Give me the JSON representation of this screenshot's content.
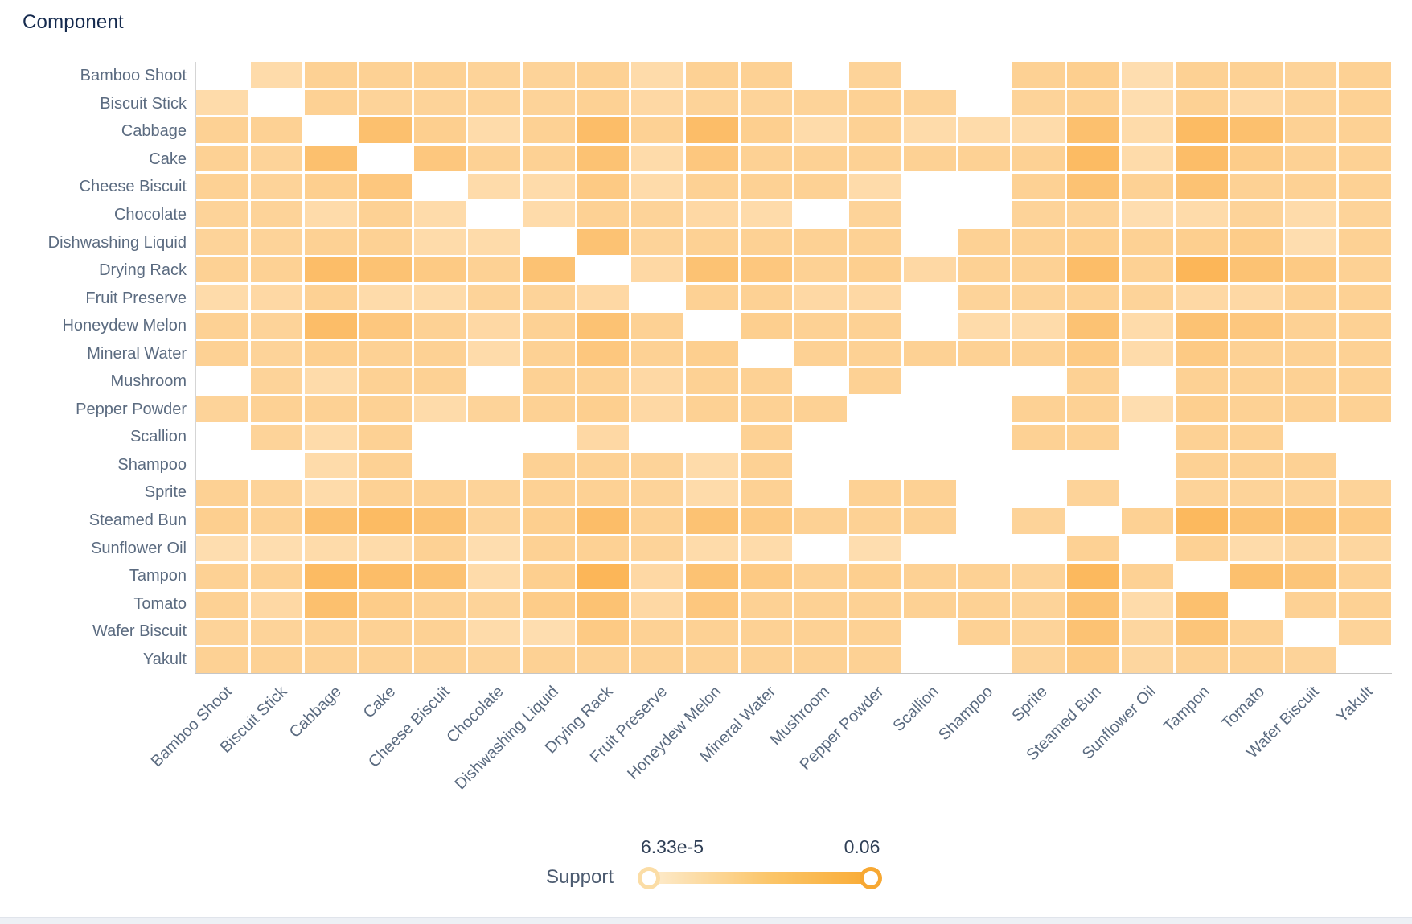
{
  "header": {
    "title": "Component"
  },
  "legend": {
    "label": "Support",
    "min_label": "6.33e-5",
    "max_label": "0.06"
  },
  "colors": {
    "title_text": "#152a4e",
    "axis_text": "#5b6b80",
    "scale_min_color": "#fff3e0",
    "scale_max_color": "#faaa3d",
    "slider_left_ring": "#fbdda6",
    "slider_right_ring": "#f7a833",
    "bottom_strip": "#edf0f5"
  },
  "chart_data": {
    "type": "heatmap",
    "title": "Component",
    "xlabel": "Component",
    "ylabel": "Component",
    "legend_label": "Support",
    "scale_min": 6.33e-05,
    "scale_max": 0.06,
    "grid_on": false,
    "legend_position": "bottom",
    "categories": [
      "Bamboo Shoot",
      "Biscuit Stick",
      "Cabbage",
      "Cake",
      "Cheese Biscuit",
      "Chocolate",
      "Dishwashing Liquid",
      "Drying Rack",
      "Fruit Preserve",
      "Honeydew Melon",
      "Mineral Water",
      "Mushroom",
      "Pepper Powder",
      "Scallion",
      "Shampoo",
      "Sprite",
      "Steamed Bun",
      "Sunflower Oil",
      "Tampon",
      "Tomato",
      "Wafer Biscuit",
      "Yakult"
    ],
    "matrix": [
      [
        null,
        0.02,
        0.028,
        0.028,
        0.028,
        0.026,
        0.026,
        0.028,
        0.02,
        0.028,
        0.028,
        null,
        0.026,
        null,
        null,
        0.028,
        0.03,
        0.018,
        0.028,
        0.028,
        0.026,
        0.028
      ],
      [
        0.02,
        null,
        0.028,
        0.026,
        0.026,
        0.026,
        0.026,
        0.028,
        0.022,
        0.026,
        0.026,
        0.026,
        0.028,
        0.026,
        null,
        0.026,
        0.028,
        0.018,
        0.028,
        0.022,
        0.026,
        0.028
      ],
      [
        0.028,
        0.028,
        null,
        0.042,
        0.03,
        0.02,
        0.028,
        0.044,
        0.028,
        0.044,
        0.03,
        0.02,
        0.028,
        0.02,
        0.02,
        0.02,
        0.042,
        0.02,
        0.046,
        0.042,
        0.028,
        0.028
      ],
      [
        0.028,
        0.026,
        0.042,
        null,
        0.036,
        0.028,
        0.028,
        0.04,
        0.02,
        0.036,
        0.028,
        0.028,
        0.028,
        0.028,
        0.028,
        0.028,
        0.046,
        0.02,
        0.044,
        0.032,
        0.028,
        0.028
      ],
      [
        0.028,
        0.026,
        0.03,
        0.036,
        null,
        0.02,
        0.02,
        0.034,
        0.02,
        0.028,
        0.028,
        0.028,
        0.02,
        null,
        null,
        0.028,
        0.04,
        0.028,
        0.04,
        0.028,
        0.028,
        0.028
      ],
      [
        0.026,
        0.026,
        0.02,
        0.028,
        0.02,
        null,
        0.02,
        0.028,
        0.026,
        0.022,
        0.02,
        null,
        0.026,
        null,
        null,
        0.026,
        0.026,
        0.018,
        0.02,
        0.026,
        0.02,
        0.026
      ],
      [
        0.026,
        0.026,
        0.028,
        0.028,
        0.02,
        0.02,
        null,
        0.04,
        0.026,
        0.028,
        0.028,
        0.028,
        0.028,
        null,
        0.028,
        0.028,
        0.03,
        0.028,
        0.03,
        0.032,
        0.018,
        0.028
      ],
      [
        0.028,
        0.028,
        0.044,
        0.04,
        0.034,
        0.028,
        0.04,
        null,
        0.022,
        0.04,
        0.036,
        0.028,
        0.03,
        0.022,
        0.028,
        0.028,
        0.044,
        0.028,
        0.05,
        0.04,
        0.034,
        0.028
      ],
      [
        0.02,
        0.022,
        0.028,
        0.02,
        0.02,
        0.026,
        0.026,
        0.022,
        null,
        0.028,
        0.028,
        0.022,
        0.022,
        null,
        0.026,
        0.026,
        0.028,
        0.026,
        0.022,
        0.022,
        0.028,
        0.028
      ],
      [
        0.028,
        0.026,
        0.044,
        0.036,
        0.028,
        0.022,
        0.028,
        0.04,
        0.028,
        null,
        0.03,
        0.028,
        0.028,
        null,
        0.02,
        0.02,
        0.04,
        0.02,
        0.04,
        0.036,
        0.028,
        0.028
      ],
      [
        0.028,
        0.026,
        0.03,
        0.028,
        0.028,
        0.02,
        0.028,
        0.036,
        0.028,
        0.03,
        null,
        0.028,
        0.028,
        0.028,
        0.028,
        0.028,
        0.034,
        0.02,
        0.034,
        0.028,
        0.028,
        0.028
      ],
      [
        null,
        0.026,
        0.02,
        0.028,
        0.028,
        null,
        0.028,
        0.028,
        0.022,
        0.028,
        0.028,
        null,
        0.028,
        null,
        null,
        null,
        0.028,
        null,
        0.028,
        0.028,
        0.028,
        0.028
      ],
      [
        0.026,
        0.028,
        0.028,
        0.028,
        0.02,
        0.026,
        0.028,
        0.03,
        0.022,
        0.028,
        0.028,
        0.028,
        null,
        null,
        null,
        0.028,
        0.028,
        0.018,
        0.03,
        0.028,
        0.028,
        0.028
      ],
      [
        null,
        0.026,
        0.02,
        0.028,
        null,
        null,
        null,
        0.022,
        null,
        null,
        0.028,
        null,
        null,
        null,
        null,
        0.028,
        0.028,
        null,
        0.028,
        0.028,
        null,
        null
      ],
      [
        null,
        null,
        0.02,
        0.028,
        null,
        null,
        0.028,
        0.028,
        0.026,
        0.02,
        0.028,
        null,
        null,
        null,
        null,
        null,
        null,
        null,
        0.028,
        0.028,
        0.028,
        null
      ],
      [
        0.028,
        0.026,
        0.02,
        0.028,
        0.028,
        0.026,
        0.028,
        0.028,
        0.026,
        0.02,
        0.028,
        null,
        0.028,
        0.028,
        null,
        null,
        0.026,
        null,
        0.026,
        0.026,
        0.026,
        0.026
      ],
      [
        0.03,
        0.028,
        0.042,
        0.046,
        0.04,
        0.026,
        0.03,
        0.044,
        0.028,
        0.04,
        0.034,
        0.028,
        0.028,
        0.028,
        null,
        0.026,
        null,
        0.028,
        0.048,
        0.04,
        0.04,
        0.034
      ],
      [
        0.018,
        0.018,
        0.02,
        0.02,
        0.028,
        0.018,
        0.028,
        0.028,
        0.026,
        0.02,
        0.02,
        null,
        0.018,
        null,
        null,
        null,
        0.028,
        null,
        0.028,
        0.02,
        0.024,
        0.024
      ],
      [
        0.028,
        0.028,
        0.046,
        0.044,
        0.04,
        0.02,
        0.03,
        0.05,
        0.022,
        0.04,
        0.034,
        0.028,
        0.03,
        0.028,
        0.028,
        0.026,
        0.048,
        0.028,
        null,
        0.042,
        0.038,
        0.028
      ],
      [
        0.028,
        0.022,
        0.042,
        0.032,
        0.028,
        0.026,
        0.032,
        0.04,
        0.022,
        0.036,
        0.028,
        0.028,
        0.028,
        0.028,
        0.028,
        0.026,
        0.04,
        0.02,
        0.042,
        null,
        0.028,
        0.028
      ],
      [
        0.026,
        0.026,
        0.028,
        0.028,
        0.028,
        0.02,
        0.018,
        0.034,
        0.028,
        0.028,
        0.028,
        0.028,
        0.028,
        null,
        0.028,
        0.026,
        0.04,
        0.024,
        0.038,
        0.028,
        null,
        0.026
      ],
      [
        0.028,
        0.028,
        0.028,
        0.028,
        0.028,
        0.026,
        0.028,
        0.028,
        0.028,
        0.028,
        0.028,
        0.028,
        0.028,
        null,
        null,
        0.026,
        0.034,
        0.024,
        0.028,
        0.028,
        0.026,
        null
      ]
    ]
  }
}
